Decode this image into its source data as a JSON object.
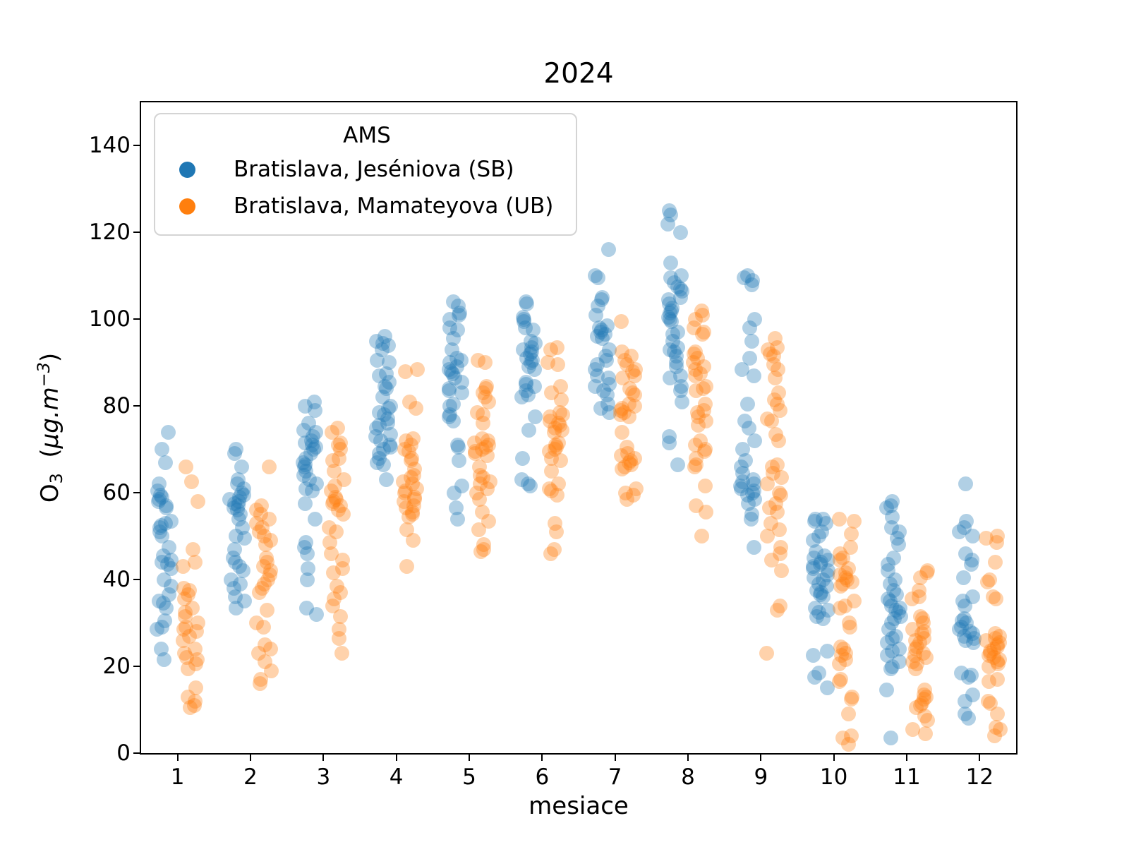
{
  "title": "2024",
  "xlabel": "mesiace",
  "ylabel_parts": {
    "element": "O",
    "subscript": "3",
    "open": "  (",
    "unit": "µg.m",
    "exponent": "−3",
    "close": ")"
  },
  "legend": {
    "title": "AMS",
    "entries": [
      {
        "label": "Bratislava, Jeséniova (SB)",
        "color": "#1f77b4"
      },
      {
        "label": "Bratislava, Mamateyova (UB)",
        "color": "#ff7f0e"
      }
    ]
  },
  "chart_data": {
    "type": "scatter",
    "title": "2024",
    "xlabel": "mesiace",
    "ylabel": "O3 (µg.m−3)",
    "x_categories": [
      1,
      2,
      3,
      4,
      5,
      6,
      7,
      8,
      9,
      10,
      11,
      12
    ],
    "xticks": [
      1,
      2,
      3,
      4,
      5,
      6,
      7,
      8,
      9,
      10,
      11,
      12
    ],
    "yticks": [
      0,
      20,
      40,
      60,
      80,
      100,
      120,
      140
    ],
    "xlim": [
      0.5,
      12.5
    ],
    "ylim": [
      0,
      150
    ],
    "grid": false,
    "legend_title": "AMS",
    "legend_position": "upper left",
    "marker_alpha": 0.35,
    "marker_size_px": 21,
    "jitter_halfwidth": 0.105,
    "series": [
      {
        "name": "Bratislava, Jeséniova (SB)",
        "color": "#1f77b4",
        "dodge": -0.18,
        "values_by_month": [
          [
            74,
            70,
            67,
            62,
            60.5,
            59.5,
            59,
            58.5,
            58,
            57,
            56.5,
            53.5,
            53,
            52.5,
            52,
            51,
            50,
            47.5,
            45.5,
            44.5,
            44,
            43.5,
            42.5,
            40,
            38.5,
            36.5,
            35,
            34.5,
            33.5,
            30.5,
            29,
            28.5,
            24,
            21.5
          ],
          [
            70,
            69,
            66,
            63,
            62,
            61,
            60,
            59.5,
            59,
            58.5,
            58,
            57.5,
            57,
            56.5,
            56,
            55,
            54,
            52,
            50,
            49.5,
            47,
            45,
            44,
            43,
            42,
            40,
            39,
            38,
            36,
            35,
            33.5
          ],
          [
            81,
            80,
            79,
            76,
            74.5,
            74,
            73,
            72,
            71.5,
            71,
            70.5,
            70,
            69,
            68,
            67,
            66.5,
            66,
            65,
            64,
            63,
            62,
            61,
            60.5,
            57.5,
            54,
            48.5,
            47.5,
            46,
            42.5,
            40,
            33.5,
            32
          ],
          [
            96,
            95,
            94.5,
            94,
            93,
            90.5,
            90,
            87.5,
            87,
            85.5,
            84.5,
            84,
            82,
            80,
            79.5,
            78.5,
            78,
            77,
            76,
            75.5,
            75,
            73.5,
            73,
            72,
            71,
            70.5,
            70,
            69,
            68,
            67,
            66.5,
            63
          ],
          [
            104,
            103,
            101.5,
            101,
            100,
            98,
            97.5,
            95.5,
            93,
            91,
            90.5,
            90,
            89,
            88.5,
            88,
            87.5,
            86.5,
            85.5,
            84,
            83.5,
            83,
            80.5,
            80,
            78,
            77.5,
            76.5,
            71,
            70.5,
            67.5,
            61.5,
            60,
            56.5,
            54
          ],
          [
            104,
            103.5,
            100.5,
            100,
            99.5,
            98,
            97.5,
            95,
            94.5,
            93.5,
            93,
            92.5,
            92,
            91,
            90.5,
            90,
            89,
            88.5,
            85.5,
            85,
            84.5,
            83.5,
            82.5,
            82,
            77.5,
            74.5,
            68,
            63,
            62,
            61.5
          ],
          [
            116,
            110,
            109.5,
            105,
            104.5,
            103,
            101,
            98.5,
            98,
            97.5,
            97,
            96.5,
            96,
            95.5,
            93,
            91.5,
            90.5,
            89.5,
            88.5,
            87,
            86.5,
            85,
            84.5,
            83.5,
            82.5,
            80.5,
            79.5,
            78.5
          ],
          [
            125,
            124,
            122,
            120,
            113,
            110,
            109.5,
            108.5,
            107.5,
            107,
            106.5,
            105,
            104.5,
            103.5,
            102.5,
            102,
            101.5,
            100.5,
            100,
            99.5,
            97,
            96.5,
            95,
            93.5,
            93,
            92.5,
            91.5,
            90,
            89,
            87,
            86.5,
            84.5,
            83.5,
            81,
            73,
            71.5,
            66.5
          ],
          [
            110,
            109.5,
            109,
            108,
            100,
            98,
            95,
            91,
            88.5,
            87,
            80.5,
            76.5,
            75,
            72,
            70,
            67.5,
            66,
            64.5,
            63,
            62.5,
            62,
            61.5,
            61,
            60.5,
            60,
            59.5,
            58.5,
            57.5,
            55,
            54,
            47.5
          ],
          [
            54,
            54,
            53.5,
            53,
            51,
            50,
            49,
            46.5,
            45.5,
            45,
            44.5,
            44,
            43.5,
            43,
            42.5,
            42,
            41,
            40.5,
            40,
            39,
            38.5,
            37.5,
            37,
            36.5,
            36,
            33.5,
            33,
            32.5,
            31.5,
            31,
            23.5,
            22.5,
            18.5,
            17.5,
            15
          ],
          [
            58,
            57,
            56.5,
            54.5,
            52,
            51,
            49.5,
            48,
            45,
            43.5,
            42,
            40,
            39,
            37.5,
            36.5,
            35.5,
            35,
            34,
            33.5,
            33,
            32.5,
            31.5,
            31,
            30,
            28.5,
            27,
            26.5,
            25.5,
            24,
            23.5,
            22.5,
            21,
            20,
            19.5,
            14.5,
            3.5
          ],
          [
            62,
            53.5,
            52,
            51,
            50,
            46,
            44.5,
            43.5,
            40.5,
            36,
            35,
            34,
            31,
            30.5,
            30,
            29,
            28.5,
            28,
            27.5,
            27,
            26.5,
            26,
            25.5,
            18.5,
            18,
            17.5,
            13.5,
            12,
            9,
            8
          ]
        ]
      },
      {
        "name": "Bratislava, Mamateyova (UB)",
        "color": "#ff7f0e",
        "dodge": 0.18,
        "values_by_month": [
          [
            66,
            62.5,
            58,
            47,
            44,
            43,
            38,
            37.5,
            36.5,
            35.5,
            33.5,
            32.5,
            31.5,
            30,
            29,
            28.5,
            28,
            27,
            26,
            24,
            23,
            22,
            21.5,
            20.5,
            19.5,
            15,
            13,
            12,
            11,
            10.5
          ],
          [
            66,
            57,
            56,
            55,
            54,
            53,
            52,
            51,
            50,
            49,
            48,
            45,
            44,
            43,
            42,
            41,
            40,
            39,
            38,
            37,
            33,
            30,
            29,
            25,
            24,
            23,
            21,
            19,
            17,
            16
          ],
          [
            75,
            74,
            71.5,
            71,
            70,
            68,
            67.5,
            65,
            63,
            61.5,
            60.5,
            59,
            58.5,
            58,
            57.5,
            57,
            56,
            55,
            52,
            51,
            48.5,
            46,
            44.5,
            42.5,
            41.5,
            38.5,
            37,
            35.5,
            34,
            31.5,
            28.5,
            26.5,
            23
          ],
          [
            88.5,
            88,
            81,
            79.5,
            72.5,
            72,
            71,
            70,
            69.5,
            68,
            67.5,
            65.5,
            64,
            63.5,
            62.5,
            62,
            61,
            60.5,
            60,
            59,
            58.5,
            58,
            57,
            56.5,
            55.5,
            55,
            54.5,
            51.5,
            49,
            43
          ],
          [
            90.5,
            90,
            84.5,
            84,
            83,
            82,
            81,
            78.5,
            78,
            76,
            72.5,
            72,
            71.5,
            71,
            70.5,
            70,
            69.5,
            69,
            68.5,
            66,
            64,
            63.5,
            62.5,
            62,
            61,
            60,
            58.5,
            55.5,
            53.5,
            51.5,
            48,
            47,
            46.5
          ],
          [
            93.5,
            93,
            90,
            89.5,
            84.5,
            83,
            81.5,
            78.5,
            78,
            77.5,
            76.5,
            76,
            75.5,
            75,
            74.5,
            74,
            71.5,
            71,
            70.5,
            70,
            69.5,
            68,
            67.5,
            65,
            62,
            61,
            60.5,
            59.5,
            53,
            51,
            47,
            46
          ],
          [
            99.5,
            92.5,
            91.5,
            90.5,
            89.5,
            88.5,
            88,
            87,
            86.5,
            84,
            83,
            82.5,
            80.5,
            80,
            79.5,
            79,
            78.5,
            78,
            77.5,
            74,
            70.5,
            69,
            68.5,
            68,
            67.5,
            67,
            66.5,
            66,
            65.5,
            61,
            60,
            59.5,
            58.5
          ],
          [
            102,
            101,
            100,
            98,
            97,
            96.5,
            92.5,
            92,
            91,
            90,
            89,
            88.5,
            87.5,
            87,
            84.5,
            84,
            83.5,
            80.5,
            79,
            78.5,
            77.5,
            76.5,
            75.5,
            72,
            71,
            70,
            69.5,
            68,
            66.5,
            66,
            61.5,
            57,
            55.5,
            50
          ],
          [
            95.5,
            93.5,
            93,
            92,
            91.5,
            89.5,
            88.5,
            86.5,
            83,
            81.5,
            80.5,
            79,
            77,
            76.5,
            73.5,
            72,
            66.5,
            66,
            64.5,
            63.5,
            62,
            60,
            59.5,
            57.5,
            56.5,
            55.5,
            53,
            51.5,
            50,
            47.5,
            46,
            44.5,
            42,
            34,
            33,
            23
          ],
          [
            54,
            53.5,
            50.5,
            47.5,
            46,
            45,
            44.5,
            42.5,
            41.5,
            41,
            40.5,
            40,
            39.5,
            39,
            38.5,
            35,
            34,
            33.5,
            30,
            29,
            24.5,
            24,
            23,
            22.5,
            21.5,
            20.5,
            17,
            16.5,
            13,
            12.5,
            9,
            4,
            3.5,
            2
          ],
          [
            42,
            41.5,
            40.5,
            37.5,
            36,
            35.5,
            31.5,
            31,
            30,
            28.5,
            28,
            27.5,
            26.5,
            26,
            25.5,
            24.5,
            24,
            23,
            22.5,
            22,
            21,
            20.5,
            19.5,
            14.5,
            13.5,
            13,
            12.5,
            11.5,
            11,
            10.5,
            8.5,
            7.5,
            5.5,
            4.5
          ],
          [
            50,
            49.5,
            48.5,
            44,
            40,
            39.5,
            36,
            35.5,
            27.5,
            27,
            26.5,
            26,
            25.5,
            25,
            24.5,
            24,
            23.5,
            23,
            22.5,
            22,
            21.5,
            21,
            20.5,
            20,
            17,
            16.5,
            12,
            11.5,
            9,
            6,
            5.5,
            4
          ]
        ]
      }
    ]
  }
}
